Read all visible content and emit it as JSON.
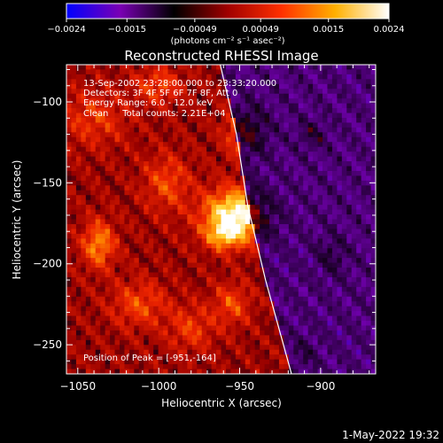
{
  "chart_data": {
    "type": "heatmap",
    "title": "Reconstructed RHESSI Image",
    "xlabel": "Heliocentric X (arcsec)",
    "ylabel": "Heliocentric Y (arcsec)",
    "xlim": [
      -1057,
      -866
    ],
    "ylim": [
      -268,
      -77
    ],
    "x_ticks": [
      -1050,
      -1000,
      -950,
      -900
    ],
    "x_tick_labels": [
      "−1050",
      "−1000",
      "−950",
      "−900"
    ],
    "y_ticks": [
      -100,
      -150,
      -200,
      -250
    ],
    "y_tick_labels": [
      "−100",
      "−150",
      "−200",
      "−250"
    ],
    "colorbar": {
      "min": -0.0024,
      "max": 0.0024,
      "ticks": [
        -0.0024,
        -0.0015,
        -0.00049,
        0.00049,
        0.0015,
        0.0024
      ],
      "tick_labels": [
        "−0.0024",
        "−0.0015",
        "−0.00049",
        "0.00049",
        "0.0015",
        "0.0024"
      ],
      "units": "(photons cm⁻² s⁻¹ asec⁻²)",
      "colors": [
        "#0000ff",
        "#7a00b4",
        "#000000",
        "#a00000",
        "#ff3000",
        "#ffb000",
        "#ffffff"
      ]
    },
    "annotations": [
      "13-Sep-2002 23:28:00.000 to 23:33:20.000",
      "Detectors: 3F 4F 5F 6F 7F 8F, Att 0",
      "Energy Range: 6.0 - 12.0 keV",
      "Clean     Total counts: 2.21E+04"
    ],
    "peak_label": "Position of Peak = [-951,-164]",
    "peak": {
      "x": -951,
      "y": -164
    },
    "limb_curve": [
      [
        -962,
        -77
      ],
      [
        -952,
        -120
      ],
      [
        -945,
        -164
      ],
      [
        -934,
        -210
      ],
      [
        -918,
        -268
      ]
    ],
    "sources": [
      {
        "x": -952,
        "y": -170,
        "sx": 14,
        "sy": 11,
        "amp": 1.0
      },
      {
        "x": -960,
        "y": -183,
        "sx": 8,
        "sy": 6,
        "amp": 0.45
      },
      {
        "x": -945,
        "y": -118,
        "sx": 9,
        "sy": 11,
        "amp": 0.55
      },
      {
        "x": -1037,
        "y": -188,
        "sx": 7,
        "sy": 10,
        "amp": 0.55
      },
      {
        "x": -995,
        "y": -150,
        "sx": 10,
        "sy": 12,
        "amp": 0.35
      },
      {
        "x": -1012,
        "y": -225,
        "sx": 12,
        "sy": 10,
        "amp": 0.35
      },
      {
        "x": -1040,
        "y": -110,
        "sx": 14,
        "sy": 12,
        "amp": 0.3
      },
      {
        "x": -980,
        "y": -240,
        "sx": 10,
        "sy": 10,
        "amp": 0.3
      },
      {
        "x": -1000,
        "y": -90,
        "sx": 10,
        "sy": 8,
        "amp": 0.35
      },
      {
        "x": -955,
        "y": -225,
        "sx": 8,
        "sy": 9,
        "amp": 0.35
      },
      {
        "x": -905,
        "y": -120,
        "sx": 6,
        "sy": 6,
        "amp": 0.35
      },
      {
        "x": -893,
        "y": -195,
        "sx": 7,
        "sy": 9,
        "amp": 0.3
      },
      {
        "x": -910,
        "y": -255,
        "sx": 6,
        "sy": 7,
        "amp": 0.25
      }
    ]
  },
  "footer_timestamp": "1-May-2022 19:32"
}
